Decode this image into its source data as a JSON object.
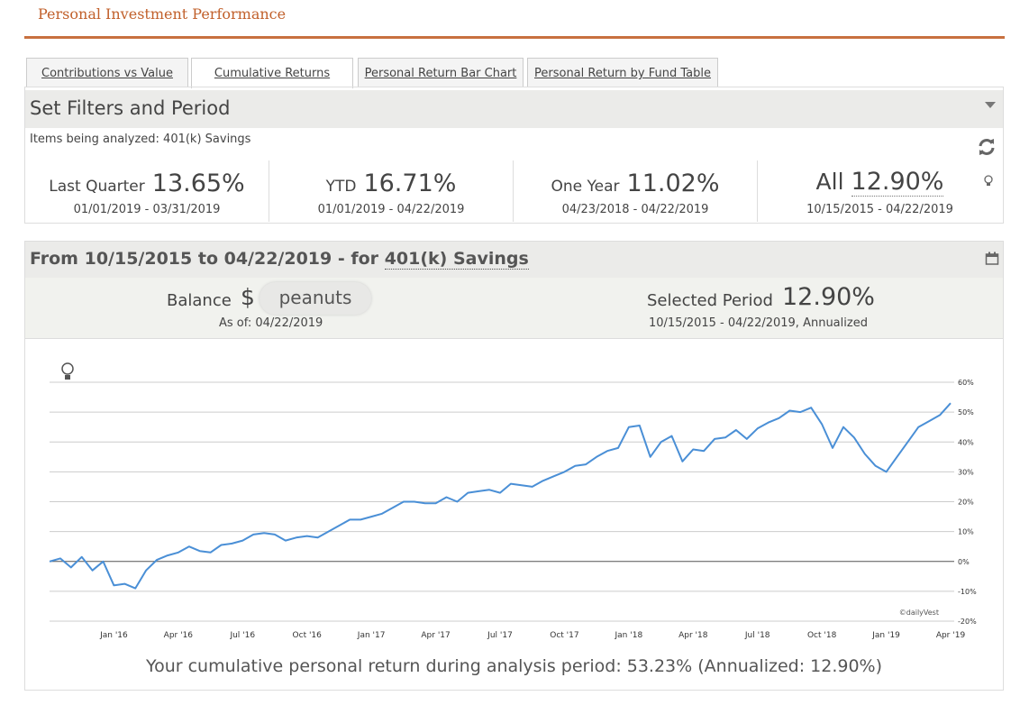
{
  "header": {
    "title": "Personal Investment Performance"
  },
  "tabs": [
    "Contributions vs Value",
    "Cumulative Returns",
    "Personal Return Bar Chart",
    "Personal Return by Fund Table"
  ],
  "filters": {
    "title": "Set Filters and Period",
    "items": "Items being analyzed: 401(k) Savings"
  },
  "stats": [
    {
      "label": "Last Quarter",
      "value": "13.65%",
      "period": "01/01/2019 - 03/31/2019"
    },
    {
      "label": "YTD",
      "value": "16.71%",
      "period": "01/01/2019 - 04/22/2019"
    },
    {
      "label": "One Year",
      "value": "11.02%",
      "period": "04/23/2018 - 04/22/2019"
    },
    {
      "label": "All",
      "value": "12.90%",
      "period": "10/15/2015 - 04/22/2019"
    }
  ],
  "period_header": {
    "text": "From 10/15/2015 to 04/22/2019 - for",
    "account": "401(k) Savings"
  },
  "balance": {
    "label": "Balance",
    "currency": "$",
    "value": "peanuts",
    "as_of": "As of: 04/22/2019"
  },
  "selected": {
    "label": "Selected Period",
    "value": "12.90%",
    "range": "10/15/2015 - 04/22/2019, Annualized"
  },
  "chart_data": {
    "type": "line",
    "color": "#4a8fd6",
    "grid": true,
    "annotation": "©dailyVest",
    "categories": [
      null,
      null,
      null,
      null,
      null,
      null,
      "Jan '16",
      null,
      null,
      null,
      null,
      null,
      "Apr '16",
      null,
      null,
      null,
      null,
      null,
      "Jul '16",
      null,
      null,
      null,
      null,
      null,
      "Oct '16",
      null,
      null,
      null,
      null,
      null,
      "Jan '17",
      null,
      null,
      null,
      null,
      null,
      "Apr '17",
      null,
      null,
      null,
      null,
      null,
      "Jul '17",
      null,
      null,
      null,
      null,
      null,
      "Oct '17",
      null,
      null,
      null,
      null,
      null,
      "Jan '18",
      null,
      null,
      null,
      null,
      null,
      "Apr '18",
      null,
      null,
      null,
      null,
      null,
      "Jul '18",
      null,
      null,
      null,
      null,
      null,
      "Oct '18",
      null,
      null,
      null,
      null,
      null,
      "Jan '19",
      null,
      null,
      null,
      null,
      null,
      "Apr '19"
    ],
    "values": [
      0,
      1,
      -2,
      1.5,
      -3,
      0,
      -8,
      -7.5,
      -9,
      -3,
      0.5,
      2,
      3,
      5,
      3.5,
      3,
      5.5,
      6,
      7,
      9,
      9.5,
      9,
      7,
      8,
      8.5,
      8,
      10,
      12,
      14,
      14,
      15,
      16,
      18,
      20,
      20,
      19.5,
      19.5,
      21.5,
      20,
      23,
      23.5,
      24,
      23,
      26,
      25.5,
      25,
      27,
      28.5,
      30,
      32,
      32.5,
      35,
      37,
      38,
      45,
      45.5,
      35,
      40,
      42,
      33.5,
      37.5,
      37,
      41,
      41.5,
      44,
      41,
      44.5,
      46.5,
      48,
      50.5,
      50,
      51.5,
      46,
      38,
      45,
      41.5,
      36,
      32,
      30,
      35,
      40,
      45,
      47,
      49,
      53
    ],
    "ylim": [
      -20,
      60
    ],
    "yticks": [
      {
        "value": -20,
        "label": "-20%"
      },
      {
        "value": -10,
        "label": "-10%"
      },
      {
        "value": 0,
        "label": "0%"
      },
      {
        "value": 10,
        "label": "10%"
      },
      {
        "value": 20,
        "label": "20%"
      },
      {
        "value": 30,
        "label": "30%"
      },
      {
        "value": 40,
        "label": "40%"
      },
      {
        "value": 50,
        "label": "50%"
      },
      {
        "value": 60,
        "label": "60%"
      }
    ]
  },
  "footer": "Your cumulative personal return during analysis period: 53.23% (Annualized: 12.90%)"
}
